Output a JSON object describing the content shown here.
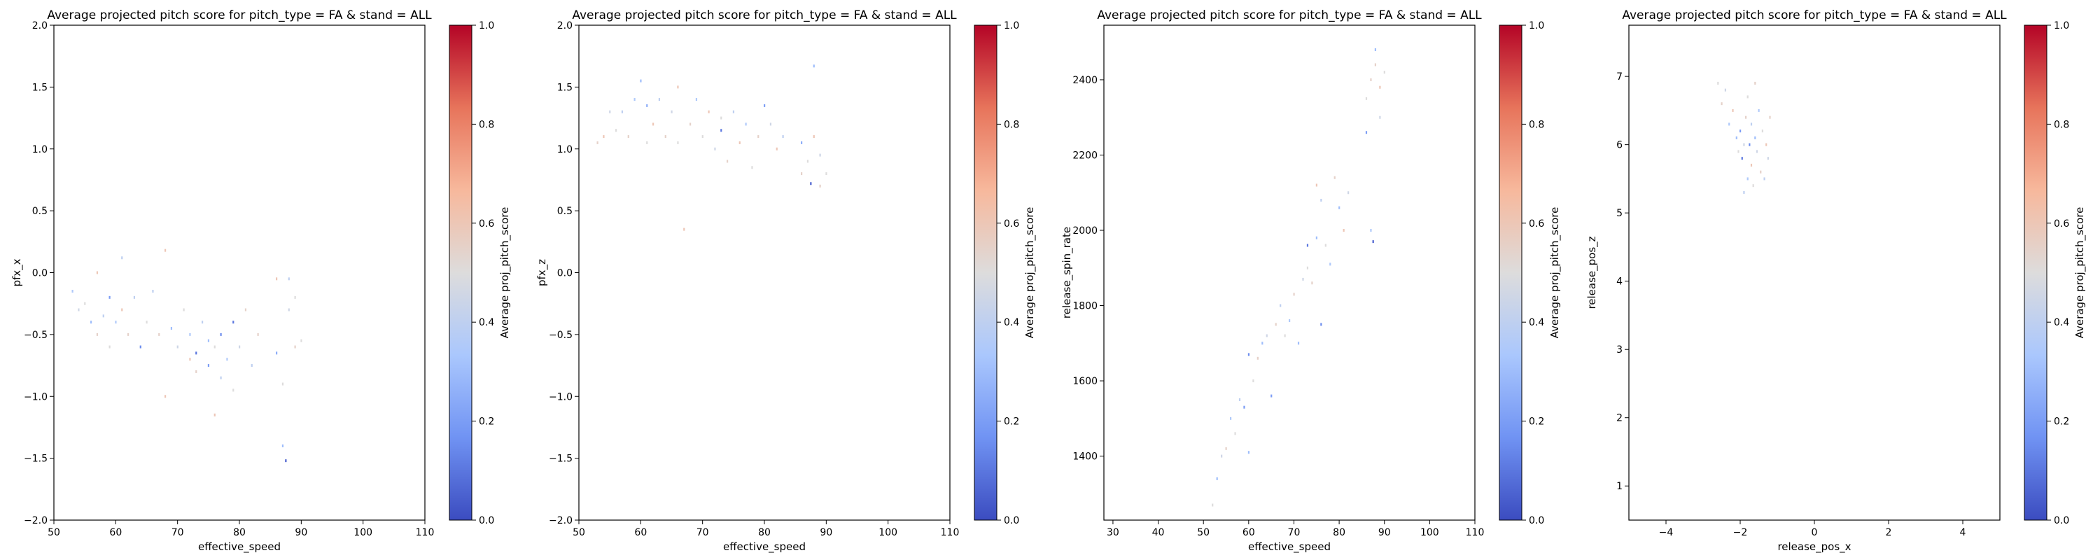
{
  "figure": {
    "colorbar_label": "Average proj_pitch_score",
    "colorbar_ticks": [
      0.0,
      0.2,
      0.4,
      0.6,
      0.8,
      1.0
    ],
    "colorbar_tick_labels": [
      "0.0",
      "0.2",
      "0.4",
      "0.6",
      "0.8",
      "1.0"
    ],
    "colormap": [
      "#3b4cc0",
      "#7093f3",
      "#aac7fd",
      "#dddcdc",
      "#f7b89c",
      "#e7745b",
      "#b40426"
    ]
  },
  "chart_data": [
    {
      "type": "scatter",
      "title": "Average projected pitch score for pitch_type = FA & stand = ALL",
      "xlabel": "effective_speed",
      "ylabel": "pfx_x",
      "xlim": [
        50,
        110
      ],
      "ylim": [
        -2.0,
        2.0
      ],
      "xticks": [
        50,
        60,
        70,
        80,
        90,
        100,
        110
      ],
      "xtick_labels": [
        "50",
        "60",
        "70",
        "80",
        "90",
        "100",
        "110"
      ],
      "yticks": [
        -2.0,
        -1.5,
        -1.0,
        -0.5,
        0.0,
        0.5,
        1.0,
        1.5,
        2.0
      ],
      "ytick_labels": [
        "−2.0",
        "−1.5",
        "−1.0",
        "−0.5",
        "0.0",
        "0.5",
        "1.0",
        "1.5",
        "2.0"
      ],
      "points": [
        [
          53,
          -0.15,
          0.35
        ],
        [
          54,
          -0.3,
          0.45
        ],
        [
          55,
          -0.25,
          0.5
        ],
        [
          56,
          -0.4,
          0.3
        ],
        [
          57,
          -0.5,
          0.55
        ],
        [
          57,
          0.0,
          0.6
        ],
        [
          58,
          -0.35,
          0.4
        ],
        [
          59,
          -0.2,
          0.2
        ],
        [
          59,
          -0.6,
          0.5
        ],
        [
          60,
          -0.4,
          0.35
        ],
        [
          61,
          -0.3,
          0.6
        ],
        [
          61,
          0.12,
          0.4
        ],
        [
          62,
          -0.5,
          0.55
        ],
        [
          63,
          -0.2,
          0.4
        ],
        [
          64,
          -0.6,
          0.15
        ],
        [
          65,
          -0.4,
          0.5
        ],
        [
          66,
          -0.15,
          0.4
        ],
        [
          67,
          -0.5,
          0.55
        ],
        [
          68,
          -1.0,
          0.6
        ],
        [
          68,
          0.18,
          0.6
        ],
        [
          69,
          -0.45,
          0.3
        ],
        [
          70,
          -0.6,
          0.45
        ],
        [
          71,
          -0.3,
          0.5
        ],
        [
          72,
          -0.5,
          0.35
        ],
        [
          72,
          -0.7,
          0.6
        ],
        [
          73,
          -0.8,
          0.55
        ],
        [
          73,
          -0.65,
          0.1
        ],
        [
          74,
          -0.4,
          0.4
        ],
        [
          75,
          -0.55,
          0.3
        ],
        [
          75,
          -0.75,
          0.2
        ],
        [
          76,
          -0.6,
          0.5
        ],
        [
          76,
          -1.15,
          0.6
        ],
        [
          77,
          -0.5,
          0.15
        ],
        [
          77,
          -0.85,
          0.4
        ],
        [
          78,
          -0.7,
          0.35
        ],
        [
          79,
          -0.95,
          0.5
        ],
        [
          79,
          -0.4,
          0.1
        ],
        [
          80,
          -0.6,
          0.45
        ],
        [
          81,
          -0.3,
          0.55
        ],
        [
          82,
          -0.75,
          0.4
        ],
        [
          83,
          -0.5,
          0.55
        ],
        [
          86,
          -0.05,
          0.6
        ],
        [
          86,
          -0.65,
          0.25
        ],
        [
          87,
          -0.9,
          0.5
        ],
        [
          87,
          -1.4,
          0.3
        ],
        [
          87.5,
          -1.52,
          0.05
        ],
        [
          88,
          -0.3,
          0.45
        ],
        [
          88,
          -0.05,
          0.4
        ],
        [
          89,
          -0.6,
          0.55
        ],
        [
          89,
          -0.2,
          0.5
        ],
        [
          90,
          -0.55,
          0.5
        ]
      ]
    },
    {
      "type": "scatter",
      "title": "Average projected pitch score for pitch_type = FA & stand = ALL",
      "xlabel": "effective_speed",
      "ylabel": "pfx_z",
      "xlim": [
        50,
        110
      ],
      "ylim": [
        -2.0,
        2.0
      ],
      "xticks": [
        50,
        60,
        70,
        80,
        90,
        100,
        110
      ],
      "xtick_labels": [
        "50",
        "60",
        "70",
        "80",
        "90",
        "100",
        "110"
      ],
      "yticks": [
        -2.0,
        -1.5,
        -1.0,
        -0.5,
        0.0,
        0.5,
        1.0,
        1.5,
        2.0
      ],
      "ytick_labels": [
        "−2.0",
        "−1.5",
        "−1.0",
        "−0.5",
        "0.0",
        "0.5",
        "1.0",
        "1.5",
        "2.0"
      ],
      "points": [
        [
          53,
          1.05,
          0.55
        ],
        [
          54,
          1.1,
          0.6
        ],
        [
          55,
          1.3,
          0.45
        ],
        [
          56,
          1.15,
          0.5
        ],
        [
          57,
          1.3,
          0.4
        ],
        [
          58,
          1.1,
          0.55
        ],
        [
          59,
          1.4,
          0.35
        ],
        [
          60,
          1.55,
          0.3
        ],
        [
          61,
          1.35,
          0.25
        ],
        [
          61,
          1.05,
          0.5
        ],
        [
          62,
          1.2,
          0.6
        ],
        [
          63,
          1.4,
          0.4
        ],
        [
          64,
          1.1,
          0.55
        ],
        [
          65,
          1.3,
          0.45
        ],
        [
          66,
          1.05,
          0.5
        ],
        [
          66,
          1.5,
          0.6
        ],
        [
          67,
          0.35,
          0.6
        ],
        [
          68,
          1.2,
          0.55
        ],
        [
          69,
          1.4,
          0.35
        ],
        [
          70,
          1.1,
          0.5
        ],
        [
          71,
          1.3,
          0.6
        ],
        [
          72,
          1.0,
          0.45
        ],
        [
          73,
          1.15,
          0.1
        ],
        [
          73,
          1.25,
          0.5
        ],
        [
          74,
          0.9,
          0.55
        ],
        [
          75,
          1.3,
          0.4
        ],
        [
          76,
          1.05,
          0.6
        ],
        [
          77,
          1.2,
          0.35
        ],
        [
          78,
          0.85,
          0.5
        ],
        [
          79,
          1.1,
          0.55
        ],
        [
          80,
          1.35,
          0.2
        ],
        [
          81,
          1.2,
          0.45
        ],
        [
          82,
          1.0,
          0.6
        ],
        [
          83,
          1.1,
          0.4
        ],
        [
          86,
          1.05,
          0.25
        ],
        [
          86,
          0.8,
          0.55
        ],
        [
          87,
          0.9,
          0.5
        ],
        [
          87.5,
          0.72,
          0.05
        ],
        [
          88,
          1.67,
          0.3
        ],
        [
          88,
          1.1,
          0.6
        ],
        [
          89,
          0.95,
          0.45
        ],
        [
          89,
          0.7,
          0.55
        ],
        [
          90,
          0.8,
          0.5
        ]
      ]
    },
    {
      "type": "scatter",
      "title": "Average projected pitch score for pitch_type = FA & stand = ALL",
      "xlabel": "effective_speed",
      "ylabel": "release_spin_rate",
      "xlim": [
        28,
        110
      ],
      "ylim": [
        1230,
        2545
      ],
      "xticks": [
        30,
        40,
        50,
        60,
        70,
        80,
        90,
        100,
        110
      ],
      "xtick_labels": [
        "30",
        "40",
        "50",
        "60",
        "70",
        "80",
        "90",
        "100",
        "110"
      ],
      "yticks": [
        1400,
        1600,
        1800,
        2000,
        2200,
        2400
      ],
      "ytick_labels": [
        "1400",
        "1600",
        "1800",
        "2000",
        "2200",
        "2400"
      ],
      "points": [
        [
          52,
          1270,
          0.5
        ],
        [
          53,
          1340,
          0.3
        ],
        [
          54,
          1400,
          0.45
        ],
        [
          55,
          1420,
          0.55
        ],
        [
          56,
          1500,
          0.35
        ],
        [
          57,
          1460,
          0.5
        ],
        [
          58,
          1550,
          0.4
        ],
        [
          59,
          1530,
          0.2
        ],
        [
          60,
          1670,
          0.15
        ],
        [
          60,
          1410,
          0.3
        ],
        [
          61,
          1600,
          0.5
        ],
        [
          62,
          1660,
          0.55
        ],
        [
          63,
          1700,
          0.3
        ],
        [
          64,
          1720,
          0.45
        ],
        [
          65,
          1560,
          0.2
        ],
        [
          66,
          1750,
          0.55
        ],
        [
          67,
          1800,
          0.4
        ],
        [
          68,
          1720,
          0.5
        ],
        [
          69,
          1760,
          0.35
        ],
        [
          70,
          1830,
          0.55
        ],
        [
          71,
          1700,
          0.3
        ],
        [
          72,
          1870,
          0.45
        ],
        [
          73,
          1960,
          0.1
        ],
        [
          73,
          1900,
          0.5
        ],
        [
          74,
          1860,
          0.55
        ],
        [
          75,
          1980,
          0.3
        ],
        [
          75,
          2120,
          0.6
        ],
        [
          76,
          1750,
          0.15
        ],
        [
          76,
          2080,
          0.4
        ],
        [
          77,
          1960,
          0.5
        ],
        [
          78,
          1910,
          0.35
        ],
        [
          79,
          2140,
          0.55
        ],
        [
          80,
          2060,
          0.3
        ],
        [
          81,
          2000,
          0.6
        ],
        [
          82,
          2100,
          0.45
        ],
        [
          86,
          2260,
          0.2
        ],
        [
          86,
          2350,
          0.5
        ],
        [
          87,
          2400,
          0.55
        ],
        [
          87,
          2000,
          0.35
        ],
        [
          87.5,
          1970,
          0.05
        ],
        [
          88,
          2480,
          0.3
        ],
        [
          88,
          2440,
          0.55
        ],
        [
          89,
          2300,
          0.45
        ],
        [
          89,
          2380,
          0.6
        ],
        [
          90,
          2420,
          0.5
        ]
      ]
    },
    {
      "type": "scatter",
      "title": "Average projected pitch score for pitch_type = FA & stand = ALL",
      "xlabel": "release_pos_x",
      "ylabel": "release_pos_z",
      "xlim": [
        -5,
        5
      ],
      "ylim": [
        0.5,
        7.75
      ],
      "xticks": [
        -4,
        -2,
        0,
        2,
        4
      ],
      "xtick_labels": [
        "−4",
        "−2",
        "0",
        "2",
        "4"
      ],
      "yticks": [
        1,
        2,
        3,
        4,
        5,
        6,
        7
      ],
      "ytick_labels": [
        "1",
        "2",
        "3",
        "4",
        "5",
        "6",
        "7"
      ],
      "points": [
        [
          -2.6,
          6.9,
          0.5
        ],
        [
          -2.5,
          6.6,
          0.55
        ],
        [
          -2.4,
          6.8,
          0.45
        ],
        [
          -2.3,
          6.3,
          0.35
        ],
        [
          -2.2,
          6.5,
          0.6
        ],
        [
          -2.1,
          6.1,
          0.3
        ],
        [
          -2.05,
          5.9,
          0.5
        ],
        [
          -2.0,
          6.2,
          0.2
        ],
        [
          -1.95,
          5.8,
          0.1
        ],
        [
          -1.9,
          6.0,
          0.45
        ],
        [
          -1.9,
          5.3,
          0.4
        ],
        [
          -1.85,
          6.4,
          0.55
        ],
        [
          -1.8,
          5.5,
          0.35
        ],
        [
          -1.8,
          6.7,
          0.5
        ],
        [
          -1.75,
          6.0,
          0.15
        ],
        [
          -1.7,
          5.7,
          0.6
        ],
        [
          -1.7,
          6.3,
          0.4
        ],
        [
          -1.65,
          5.4,
          0.5
        ],
        [
          -1.6,
          6.1,
          0.3
        ],
        [
          -1.6,
          6.9,
          0.55
        ],
        [
          -1.55,
          5.9,
          0.45
        ],
        [
          -1.5,
          6.5,
          0.35
        ],
        [
          -1.45,
          5.6,
          0.55
        ],
        [
          -1.4,
          6.2,
          0.5
        ],
        [
          -1.35,
          5.5,
          0.4
        ],
        [
          -1.3,
          6.0,
          0.6
        ],
        [
          -1.25,
          5.8,
          0.45
        ],
        [
          -1.2,
          6.4,
          0.55
        ]
      ]
    }
  ]
}
